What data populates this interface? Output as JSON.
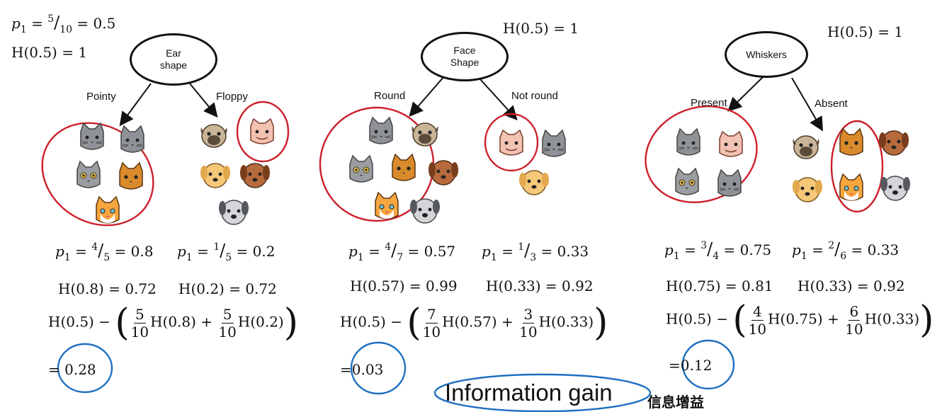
{
  "colors": {
    "ink": "#111111",
    "red_marker": "#cc1f2a",
    "blue_marker": "#1f6fc0"
  },
  "header": {
    "p1_label": "p",
    "p1_sub": "1",
    "p1_eq": " = ",
    "p1_num": "5",
    "p1_den": "10",
    "p1_val": " = 0.5",
    "h_root": "H(0.5) = 1"
  },
  "splits": [
    {
      "root_line1": "Ear",
      "root_line2": "shape",
      "left_branch": "Pointy",
      "right_branch": "Floppy",
      "root_entropy": "",
      "p_left_num": "4",
      "p_left_den": "5",
      "p_left_val": " = 0.8",
      "p_right_num": "1",
      "p_right_den": "5",
      "p_right_val": " = 0.2",
      "h_left": "H(0.8) = 0.72",
      "h_right": "H(0.2) = 0.72",
      "w_left_num": "5",
      "w_left_den": "10",
      "h_left_arg": "H(0.8)",
      "w_right_num": "5",
      "w_right_den": "10",
      "h_right_arg": "H(0.2)",
      "gain": "0.28"
    },
    {
      "root_line1": "Face",
      "root_line2": "Shape",
      "left_branch": "Round",
      "right_branch": "Not round",
      "root_entropy": "H(0.5) = 1",
      "p_left_num": "4",
      "p_left_den": "7",
      "p_left_val": " = 0.57",
      "p_right_num": "1",
      "p_right_den": "3",
      "p_right_val": " = 0.33",
      "h_left": "H(0.57) = 0.99",
      "h_right": "H(0.33) = 0.92",
      "w_left_num": "7",
      "w_left_den": "10",
      "h_left_arg": "H(0.57)",
      "w_right_num": "3",
      "w_right_den": "10",
      "h_right_arg": "H(0.33)",
      "gain": "0.03"
    },
    {
      "root_line1": "Whiskers",
      "root_line2": "",
      "left_branch": "Present",
      "right_branch": "Absent",
      "root_entropy": "H(0.5) = 1",
      "p_left_num": "3",
      "p_left_den": "4",
      "p_left_val": " = 0.75",
      "p_right_num": "2",
      "p_right_den": "6",
      "p_right_val": " = 0.33",
      "h_left": "H(0.75) = 0.81",
      "h_right": "H(0.33) = 0.92",
      "w_left_num": "4",
      "w_left_den": "10",
      "h_left_arg": "H(0.75)",
      "w_right_num": "6",
      "w_right_den": "10",
      "h_right_arg": "H(0.33)",
      "gain": "0.12"
    }
  ],
  "formula": {
    "h_root": "H(0.5) − ",
    "plus": " + ",
    "eq": "="
  },
  "footer": {
    "title": "Information gain",
    "title_cn": "信息增益"
  }
}
